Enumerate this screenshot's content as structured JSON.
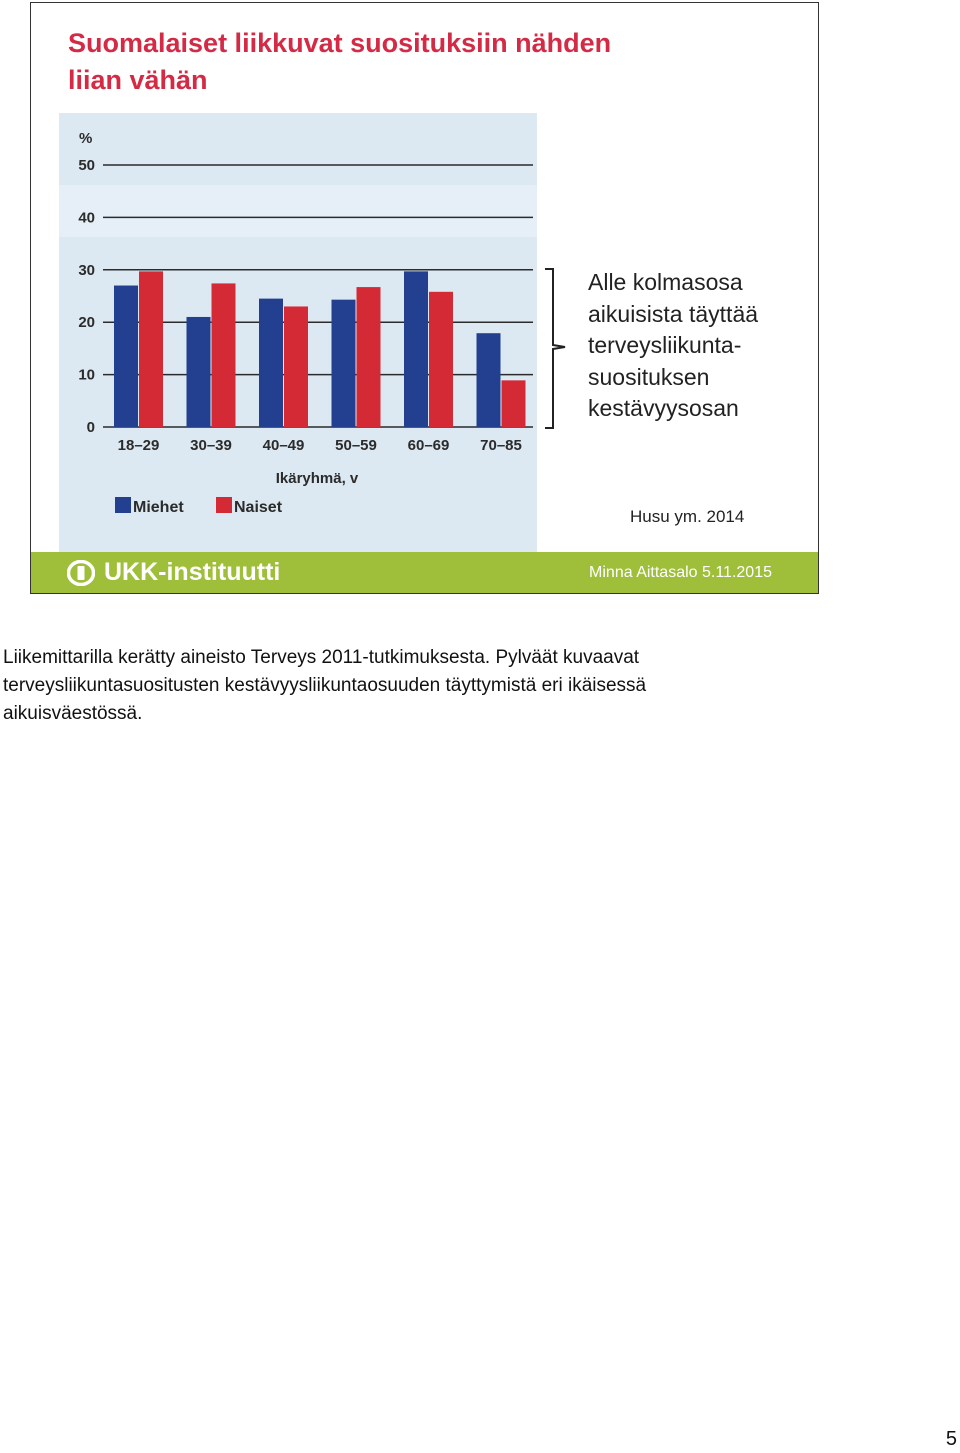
{
  "slide": {
    "title_lines": [
      "Suomalaiset liikkuvat suosituksiin nähden",
      "liian vähän"
    ],
    "annotation_lines": [
      "Alle kolmasosa",
      "aikuisista täyttää",
      "terveysliikunta-",
      "suosituksen",
      "kestävyysosan"
    ],
    "citation": "Husu ym. 2014",
    "footer": {
      "logo_text": "UKK-instituutti",
      "author_date": "Minna Aittasalo 5.11.2015"
    }
  },
  "chart_data": {
    "type": "bar",
    "ylabel": "%",
    "xlabel": "Ikäryhmä, v",
    "ylim": [
      0,
      50
    ],
    "yticks": [
      0,
      10,
      20,
      30,
      40,
      50
    ],
    "grid": true,
    "legend_position": "bottom-left",
    "categories": [
      "18–29",
      "30–39",
      "40–49",
      "50–59",
      "60–69",
      "70–85"
    ],
    "series": [
      {
        "name": "Miehet",
        "color": "#22408f",
        "values": [
          27,
          21,
          24.5,
          24.3,
          29.7,
          17.9
        ]
      },
      {
        "name": "Naiset",
        "color": "#d42a36",
        "values": [
          29.7,
          27.4,
          23,
          26.7,
          25.8,
          8.9
        ]
      }
    ]
  },
  "notes": {
    "lines": [
      "Liikemittarilla kerätty aineisto Terveys 2011-tutkimuksesta. Pylväät kuvaavat",
      "terveysliikuntasuositusten kestävyysliikuntaosuuden täyttymistä eri ikäisessä",
      "aikuisväestössä."
    ]
  },
  "page_number": "5"
}
